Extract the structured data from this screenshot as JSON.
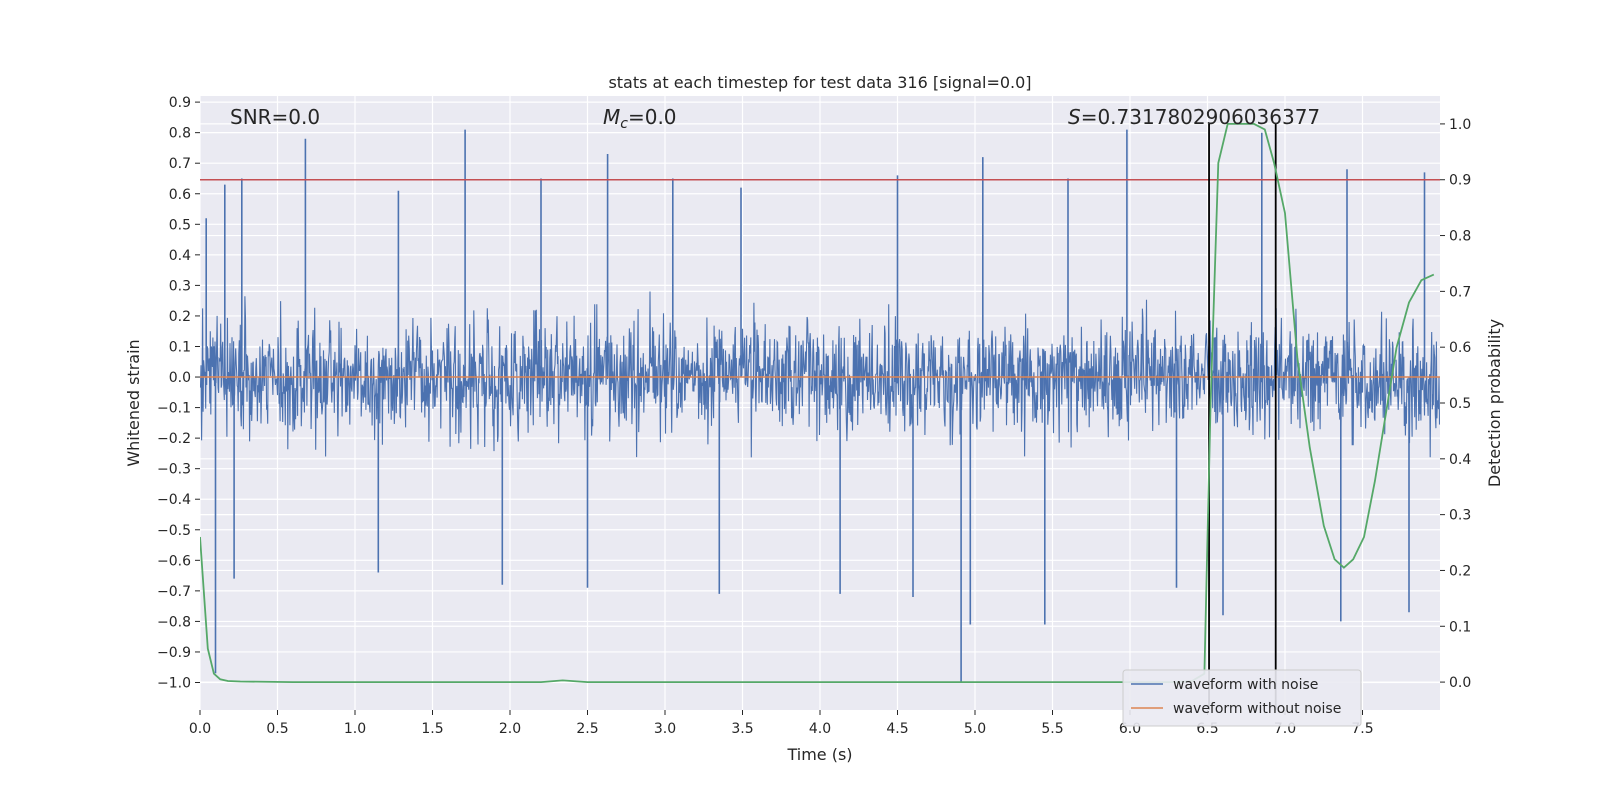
{
  "chart_data": {
    "type": "line",
    "title": "stats at each timestep for test data 316 [signal=0.0]",
    "xlabel": "Time (s)",
    "ylabel": "Whitened strain",
    "y2label": "Detection probability",
    "xlim": [
      0.0,
      8.0
    ],
    "ylim": [
      -1.09,
      0.92
    ],
    "y2lim": [
      -0.05,
      1.05
    ],
    "xticks": [
      0.0,
      0.5,
      1.0,
      1.5,
      2.0,
      2.5,
      3.0,
      3.5,
      4.0,
      4.5,
      5.0,
      5.5,
      6.0,
      6.5,
      7.0,
      7.5
    ],
    "xtick_labels": [
      "0.0",
      "0.5",
      "1.0",
      "1.5",
      "2.0",
      "2.5",
      "3.0",
      "3.5",
      "4.0",
      "4.5",
      "5.0",
      "5.5",
      "6.0",
      "6.5",
      "7.0",
      "7.5"
    ],
    "yticks": [
      0.9,
      0.8,
      0.7,
      0.6,
      0.5,
      0.4,
      0.3,
      0.2,
      0.1,
      0.0,
      -0.1,
      -0.2,
      -0.3,
      -0.4,
      -0.5,
      -0.6,
      -0.7,
      -0.8,
      -0.9,
      -1.0
    ],
    "ytick_labels": [
      "0.9",
      "0.8",
      "0.7",
      "0.6",
      "0.5",
      "0.4",
      "0.3",
      "0.2",
      "0.1",
      "0.0",
      "−0.1",
      "−0.2",
      "−0.3",
      "−0.4",
      "−0.5",
      "−0.6",
      "−0.7",
      "−0.8",
      "−0.9",
      "−1.0"
    ],
    "y2ticks": [
      1.0,
      0.9,
      0.8,
      0.7,
      0.6,
      0.5,
      0.4,
      0.3,
      0.2,
      0.1,
      0.0
    ],
    "y2tick_labels": [
      "1.0",
      "0.9",
      "0.8",
      "0.7",
      "0.6",
      "0.5",
      "0.4",
      "0.3",
      "0.2",
      "0.1",
      "0.0"
    ],
    "grid": true,
    "legend_position": "lower-right",
    "annotations": {
      "snr": "SNR=0.0",
      "mc": "=0.0",
      "mc_symbol": "M",
      "mc_subscript": "c",
      "s": "=0.7317802906036377",
      "s_symbol": "S"
    },
    "threshold": {
      "y2": 0.9,
      "color": "#c44e52"
    },
    "vertical_markers": {
      "x": [
        6.51,
        6.94
      ],
      "color": "#000000"
    },
    "noise_envelope": {
      "typical_lower": -0.45,
      "typical_upper": 0.45,
      "peaks": [
        {
          "x": 0.04,
          "y": 0.52
        },
        {
          "x": 0.16,
          "y": 0.63
        },
        {
          "x": 0.27,
          "y": 0.65
        },
        {
          "x": 0.68,
          "y": 0.78
        },
        {
          "x": 1.28,
          "y": 0.61
        },
        {
          "x": 1.71,
          "y": 0.81
        },
        {
          "x": 2.2,
          "y": 0.65
        },
        {
          "x": 2.63,
          "y": 0.73
        },
        {
          "x": 3.05,
          "y": 0.65
        },
        {
          "x": 3.49,
          "y": 0.62
        },
        {
          "x": 4.5,
          "y": 0.66
        },
        {
          "x": 5.05,
          "y": 0.72
        },
        {
          "x": 5.6,
          "y": 0.65
        },
        {
          "x": 5.98,
          "y": 0.81
        },
        {
          "x": 6.85,
          "y": 0.8
        },
        {
          "x": 7.4,
          "y": 0.68
        },
        {
          "x": 7.9,
          "y": 0.67
        }
      ],
      "troughs": [
        {
          "x": 0.1,
          "y": -0.97
        },
        {
          "x": 0.22,
          "y": -0.66
        },
        {
          "x": 1.15,
          "y": -0.64
        },
        {
          "x": 1.95,
          "y": -0.68
        },
        {
          "x": 2.5,
          "y": -0.69
        },
        {
          "x": 3.35,
          "y": -0.71
        },
        {
          "x": 4.13,
          "y": -0.71
        },
        {
          "x": 4.6,
          "y": -0.72
        },
        {
          "x": 4.91,
          "y": -1.0
        },
        {
          "x": 4.97,
          "y": -0.81
        },
        {
          "x": 5.45,
          "y": -0.81
        },
        {
          "x": 6.3,
          "y": -0.69
        },
        {
          "x": 6.6,
          "y": -0.78
        },
        {
          "x": 7.36,
          "y": -0.8
        },
        {
          "x": 7.8,
          "y": -0.77
        }
      ]
    },
    "series": [
      {
        "name": "waveform with noise",
        "color": "#4c72b0",
        "axis": "left"
      },
      {
        "name": "waveform without noise",
        "color": "#dd8452",
        "axis": "left",
        "x": [
          0.0,
          8.0
        ],
        "y": [
          0.0,
          0.0
        ]
      },
      {
        "color": "#55a868",
        "axis": "right",
        "x": [
          0.0,
          0.05,
          0.09,
          0.13,
          0.18,
          0.26,
          0.6,
          1.0,
          2.0,
          2.2,
          2.34,
          2.5,
          3.0,
          4.0,
          5.0,
          6.0,
          6.3,
          6.4,
          6.48,
          6.52,
          6.57,
          6.63,
          6.7,
          6.8,
          6.87,
          6.93,
          7.0,
          7.08,
          7.16,
          7.25,
          7.32,
          7.38,
          7.44,
          7.51,
          7.58,
          7.65,
          7.72,
          7.8,
          7.88,
          7.96
        ],
        "y": [
          0.26,
          0.06,
          0.015,
          0.005,
          0.002,
          0.001,
          0.0,
          0.0,
          0.0,
          0.0,
          0.003,
          0.0,
          0.0,
          0.0,
          0.0,
          0.0,
          0.0,
          0.002,
          0.015,
          0.5,
          0.93,
          1.0,
          1.0,
          1.0,
          0.99,
          0.93,
          0.84,
          0.58,
          0.42,
          0.28,
          0.22,
          0.205,
          0.22,
          0.26,
          0.36,
          0.48,
          0.6,
          0.68,
          0.72,
          0.73
        ]
      }
    ]
  }
}
